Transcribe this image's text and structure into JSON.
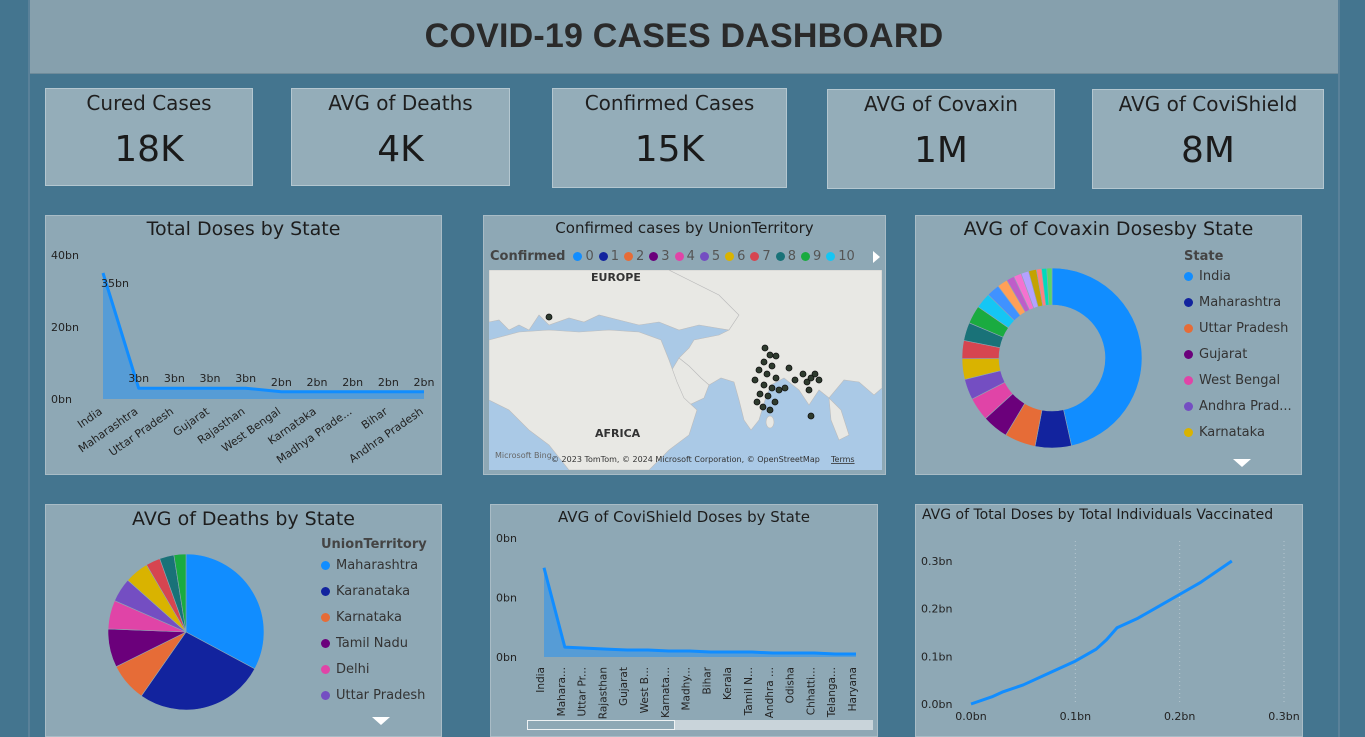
{
  "header": {
    "title": "COVID-19 CASES DASHBOARD"
  },
  "kpis": [
    {
      "label": "Cured Cases",
      "value": "18K"
    },
    {
      "label": "AVG of Deaths",
      "value": "4K"
    },
    {
      "label": "Confirmed Cases",
      "value": "15K"
    },
    {
      "label": "AVG of Covaxin",
      "value": "1M"
    },
    {
      "label": "AVG of CoviShield",
      "value": "8M"
    }
  ],
  "map": {
    "title": "Confirmed cases by UnionTerritory",
    "legend_title": "Confirmed",
    "legend_items": [
      {
        "label": "0",
        "color": "#118dff"
      },
      {
        "label": "1",
        "color": "#12239e"
      },
      {
        "label": "2",
        "color": "#e66c37"
      },
      {
        "label": "3",
        "color": "#6b007b"
      },
      {
        "label": "4",
        "color": "#e044a7"
      },
      {
        "label": "5",
        "color": "#744ec2"
      },
      {
        "label": "6",
        "color": "#d9b300"
      },
      {
        "label": "7",
        "color": "#d64550"
      },
      {
        "label": "8",
        "color": "#197278"
      },
      {
        "label": "9",
        "color": "#1aab40"
      },
      {
        "label": "10",
        "color": "#15c6f4"
      }
    ],
    "label_europe": "EUROPE",
    "label_africa": "AFRICA",
    "brand": "Microsoft Bing",
    "copyright": "© 2023 TomTom, © 2024 Microsoft Corporation, © OpenStreetMap",
    "terms": "Terms"
  },
  "covaxin_legend": {
    "title": "State",
    "items": [
      "India",
      "Maharashtra",
      "Uttar Pradesh",
      "Gujarat",
      "West Bengal",
      "Andhra Prad...",
      "Karnataka"
    ]
  },
  "deaths_legend": {
    "title": "UnionTerritory",
    "items": [
      "Maharashtra",
      "Karanataka",
      "Karnataka",
      "Tamil Nadu",
      "Delhi",
      "Uttar Pradesh"
    ]
  },
  "palette": [
    "#118dff",
    "#12239e",
    "#e66c37",
    "#6b007b",
    "#e044a7",
    "#744ec2",
    "#d9b300",
    "#d64550",
    "#197278",
    "#1aab40",
    "#15c6f4",
    "#4092ff",
    "#ffa058",
    "#be5dc9",
    "#f472d0",
    "#b5a1ff",
    "#c4a200",
    "#ff8080",
    "#00dbbc",
    "#5bd667"
  ],
  "chart_data": [
    {
      "type": "area",
      "title": "Total Doses by State",
      "categories": [
        "India",
        "Maharashtra",
        "Uttar Pradesh",
        "Gujarat",
        "Rajasthan",
        "West Bengal",
        "Karnataka",
        "Madhya Prade...",
        "Bihar",
        "Andhra Pradesh"
      ],
      "values": [
        35,
        3,
        3,
        3,
        3,
        2,
        2,
        2,
        2,
        2
      ],
      "data_labels": [
        "35bn",
        "3bn",
        "3bn",
        "3bn",
        "3bn",
        "2bn",
        "2bn",
        "2bn",
        "2bn",
        "2bn"
      ],
      "y_ticks": [
        "0bn",
        "20bn",
        "40bn"
      ],
      "ylim": [
        0,
        40
      ],
      "color": "#118dff"
    },
    {
      "type": "pie",
      "donut": true,
      "title": "AVG of Covaxin Dosesby State",
      "values": [
        50,
        7,
        6,
        5,
        4.5,
        4,
        4,
        3.5,
        3.5,
        3.5,
        3,
        2.5,
        2,
        1.5,
        1.5,
        1.5,
        1.5,
        1,
        1,
        1
      ]
    },
    {
      "type": "pie",
      "title": "AVG of Deaths by State",
      "values": [
        33,
        27,
        8,
        8,
        6,
        5,
        5,
        3,
        3,
        2.5
      ]
    },
    {
      "type": "area",
      "title": "AVG of CoviShield Doses by State",
      "categories": [
        "India",
        "Mahara...",
        "Uttar Pr...",
        "Rajasthan",
        "Gujarat",
        "West B...",
        "Karnata...",
        "Madhy...",
        "Bihar",
        "Kerala",
        "Tamil N...",
        "Andhra ...",
        "Odisha",
        "Chhatti...",
        "Telanga...",
        "Haryana"
      ],
      "values": [
        0.9,
        0.1,
        0.09,
        0.08,
        0.07,
        0.07,
        0.06,
        0.06,
        0.05,
        0.05,
        0.05,
        0.04,
        0.04,
        0.04,
        0.03,
        0.03
      ],
      "y_ticks": [
        "0bn",
        "0bn",
        "0bn"
      ],
      "ylim": [
        0,
        1.2
      ],
      "color": "#118dff"
    },
    {
      "type": "line",
      "title": "AVG of Total Doses by Total Individuals Vaccinated",
      "x": [
        0.0,
        0.02,
        0.03,
        0.05,
        0.08,
        0.1,
        0.12,
        0.13,
        0.14,
        0.16,
        0.18,
        0.2,
        0.22,
        0.25
      ],
      "y": [
        0.0,
        0.015,
        0.025,
        0.04,
        0.07,
        0.09,
        0.115,
        0.135,
        0.16,
        0.18,
        0.205,
        0.23,
        0.255,
        0.3
      ],
      "x_ticks": [
        "0.0bn",
        "0.1bn",
        "0.2bn",
        "0.3bn"
      ],
      "y_ticks": [
        "0.0bn",
        "0.1bn",
        "0.2bn",
        "0.3bn"
      ],
      "xlim": [
        0,
        0.3
      ],
      "ylim": [
        0,
        0.3
      ],
      "color": "#118dff"
    }
  ]
}
